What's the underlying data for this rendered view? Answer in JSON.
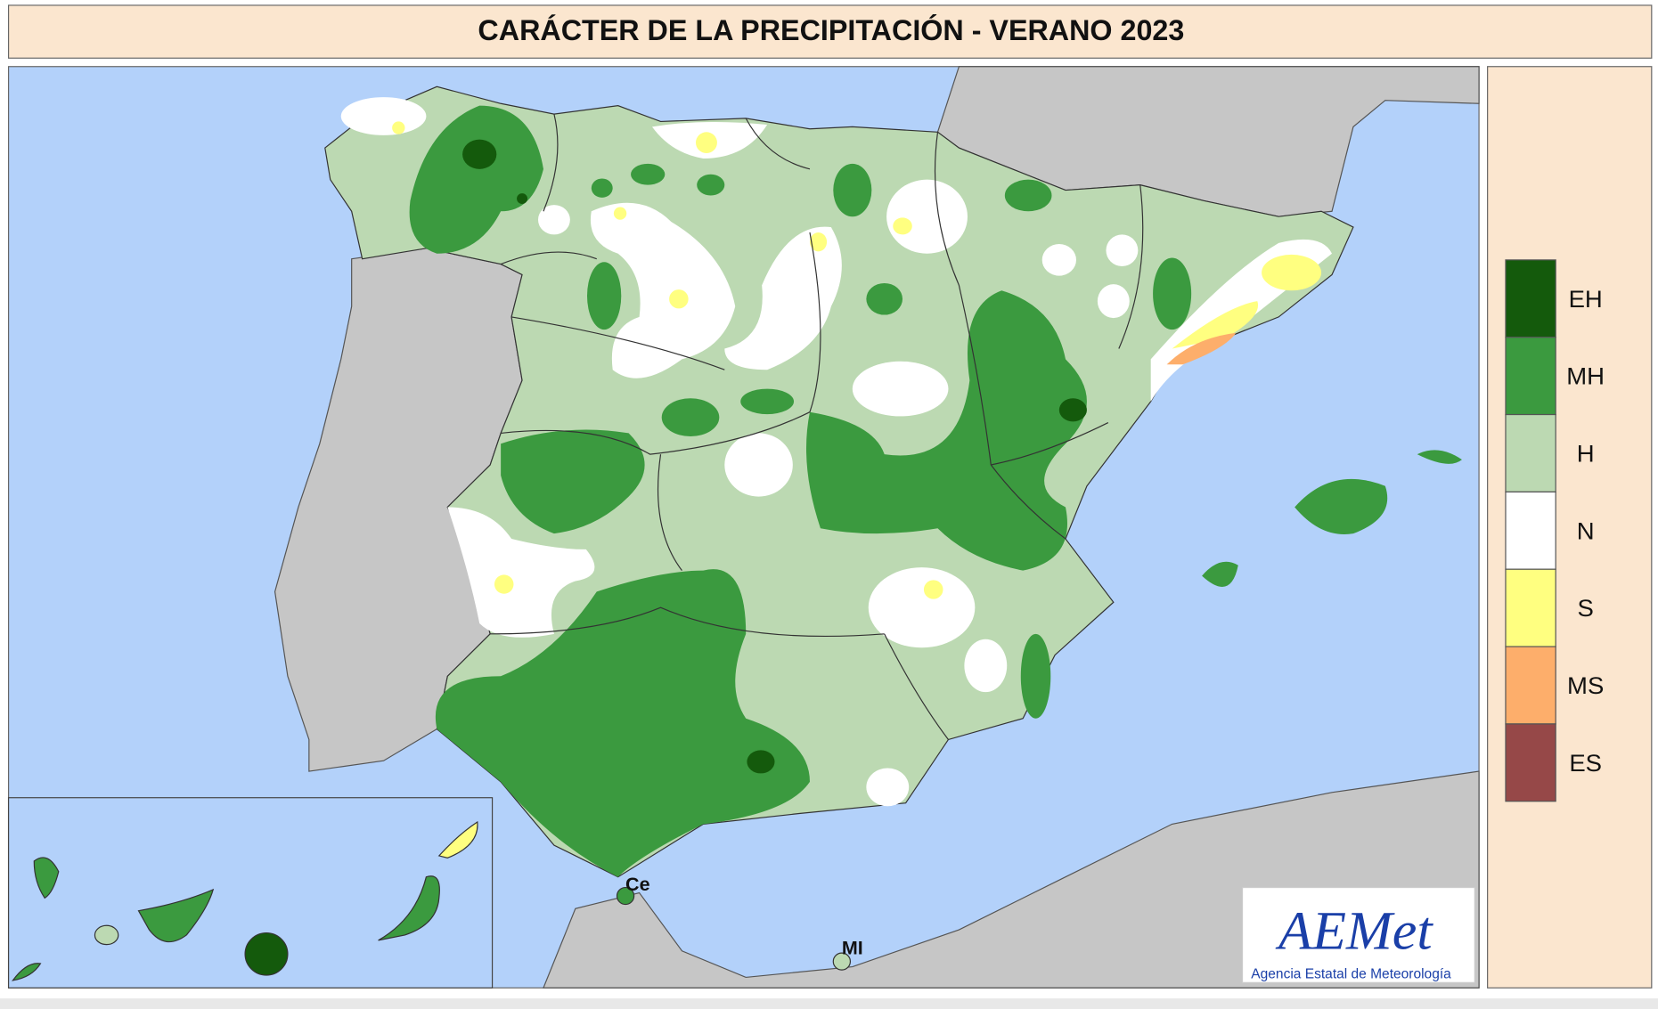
{
  "title": "CARÁCTER DE LA PRECIPITACIÓN - VERANO  2023",
  "legend": [
    {
      "label": "EH",
      "color": "#145a0c"
    },
    {
      "label": "MH",
      "color": "#3b9a3f"
    },
    {
      "label": "H",
      "color": "#bcd9b2"
    },
    {
      "label": "N",
      "color": "#ffffff"
    },
    {
      "label": "S",
      "color": "#ffff80"
    },
    {
      "label": "MS",
      "color": "#fdae6b"
    },
    {
      "label": "ES",
      "color": "#964848"
    }
  ],
  "places": [
    "Ce",
    "MI"
  ],
  "logo": {
    "name": "AEMet",
    "text": "Agencia Estatal de Meteorología"
  }
}
